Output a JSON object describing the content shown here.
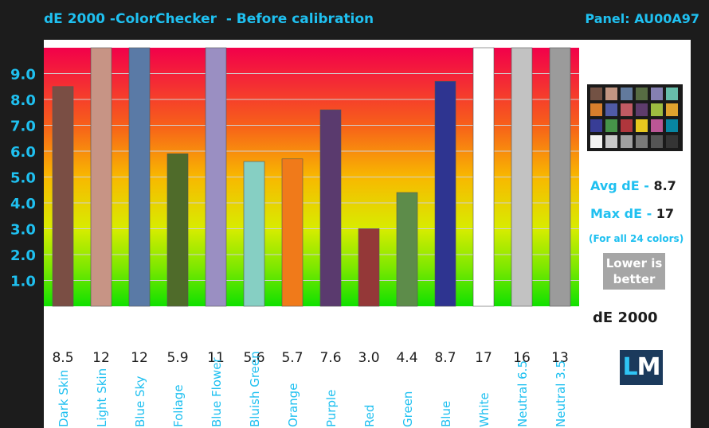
{
  "header": {
    "title": "dE 2000 -ColorChecker  - Before calibration",
    "panel": "Panel: AU00A97"
  },
  "sidebar": {
    "avg_label": "Avg dE - ",
    "avg_value": "8.7",
    "max_label": "Max dE - ",
    "max_value": "17",
    "note": "(For all 24 colors)",
    "lower_line1": "Lower is",
    "lower_line2": "better",
    "metric": "dE 2000",
    "logo_l": "L",
    "logo_m": "M",
    "swatch_icon": "colorchecker-swatch-icon",
    "swatches": [
      "#735244",
      "#c29682",
      "#627a9d",
      "#576c43",
      "#8580b1",
      "#67bdaa",
      "#d67e2c",
      "#505ba6",
      "#c15a63",
      "#5e3c6c",
      "#9dbc40",
      "#e0a32e",
      "#383d96",
      "#469449",
      "#af363c",
      "#e7c71f",
      "#bb5695",
      "#0885a1",
      "#f3f3f2",
      "#c8c8c8",
      "#a0a0a0",
      "#7a7a79",
      "#555555",
      "#343434"
    ]
  },
  "chart_data": {
    "type": "bar",
    "title": "dE 2000 -ColorChecker  - Before calibration",
    "xlabel": "",
    "ylabel": "",
    "ylim": [
      0,
      10
    ],
    "yticks": [
      "1.0",
      "2.0",
      "3.0",
      "4.0",
      "5.0",
      "6.0",
      "7.0",
      "8.0",
      "9.0"
    ],
    "grid": true,
    "categories": [
      "Dark Skin",
      "Light Skin",
      "Blue Sky",
      "Foliage",
      "Blue Flower",
      "Bluish Green",
      "Orange",
      "Purple",
      "Red",
      "Green",
      "Blue",
      "White",
      "Neutral 6.5",
      "Neutral 3.5"
    ],
    "values": [
      8.5,
      12,
      12,
      5.9,
      11,
      5.6,
      5.7,
      7.6,
      3.0,
      4.4,
      8.7,
      17,
      16,
      13
    ],
    "value_labels": [
      "8.5",
      "12",
      "12",
      "5.9",
      "11",
      "5.6",
      "5.7",
      "7.6",
      "3.0",
      "4.4",
      "8.7",
      "17",
      "16",
      "13"
    ],
    "colors": [
      "#7a4e44",
      "#c79485",
      "#5a7aa6",
      "#4f6b2a",
      "#9a8fc2",
      "#86cfc3",
      "#f07a1a",
      "#5a3a6e",
      "#943838",
      "#5d8c4a",
      "#2e3490",
      "#ffffff",
      "#c2c2c2",
      "#9b9b9b"
    ]
  }
}
